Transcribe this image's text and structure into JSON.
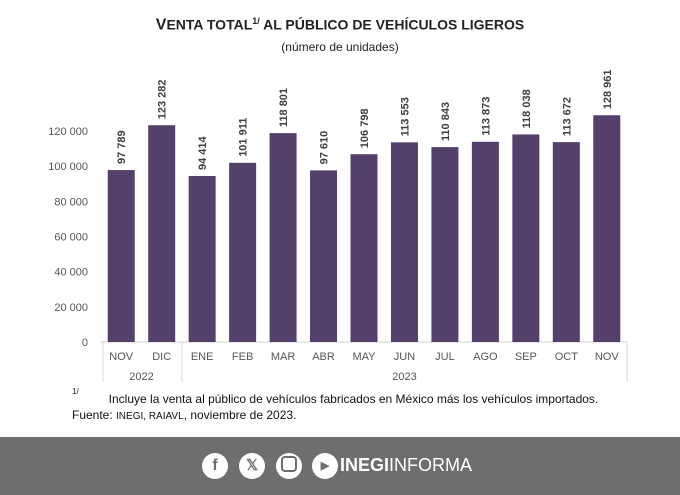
{
  "chart_data": {
    "type": "bar",
    "title": "VENTA TOTAL AL PÚBLICO DE VEHÍCULOS LIGEROS",
    "title_parts": {
      "first_letter": "V",
      "rest1": "ENTA TOTAL",
      "sup": "1/",
      "rest2": " AL PÚBLICO DE VEHÍCULOS LIGEROS"
    },
    "subtitle": "(número de unidades)",
    "categories": [
      "NOV",
      "DIC",
      "ENE",
      "FEB",
      "MAR",
      "ABR",
      "MAY",
      "JUN",
      "JUL",
      "AGO",
      "SEP",
      "OCT",
      "NOV"
    ],
    "groups": [
      {
        "label": "2022",
        "count": 2
      },
      {
        "label": "2023",
        "count": 11
      }
    ],
    "values": [
      97789,
      123282,
      94414,
      101911,
      118801,
      97610,
      106798,
      113553,
      110843,
      113873,
      118038,
      113672,
      128961
    ],
    "data_labels": [
      "97 789",
      "123 282",
      "94 414",
      "101 911",
      "118 801",
      "97 610",
      "106 798",
      "113 553",
      "110 843",
      "113 873",
      "118 038",
      "113 672",
      "128 961"
    ],
    "yticks": [
      0,
      20000,
      40000,
      60000,
      80000,
      100000,
      120000
    ],
    "ytick_labels": [
      "0",
      "20 000",
      "40 000",
      "60 000",
      "80 000",
      "100 000",
      "120 000"
    ],
    "ylim": [
      0,
      130000
    ],
    "grid": false,
    "bar_color": "#553f6b"
  },
  "footnote": {
    "mark": "1/",
    "text": "Incluye la venta al público de vehículos fabricados en México más los vehículos importados."
  },
  "source": {
    "label": "Fuente: ",
    "orgs": "INEGI, RAIAVL",
    "rest": ", noviembre de 2023."
  },
  "footer": {
    "bg": "#6d6e70",
    "icons": [
      "facebook-icon",
      "x-icon",
      "instagram-icon",
      "youtube-icon"
    ],
    "brand_bold": "INEGI",
    "brand_light": "INFORMA"
  }
}
